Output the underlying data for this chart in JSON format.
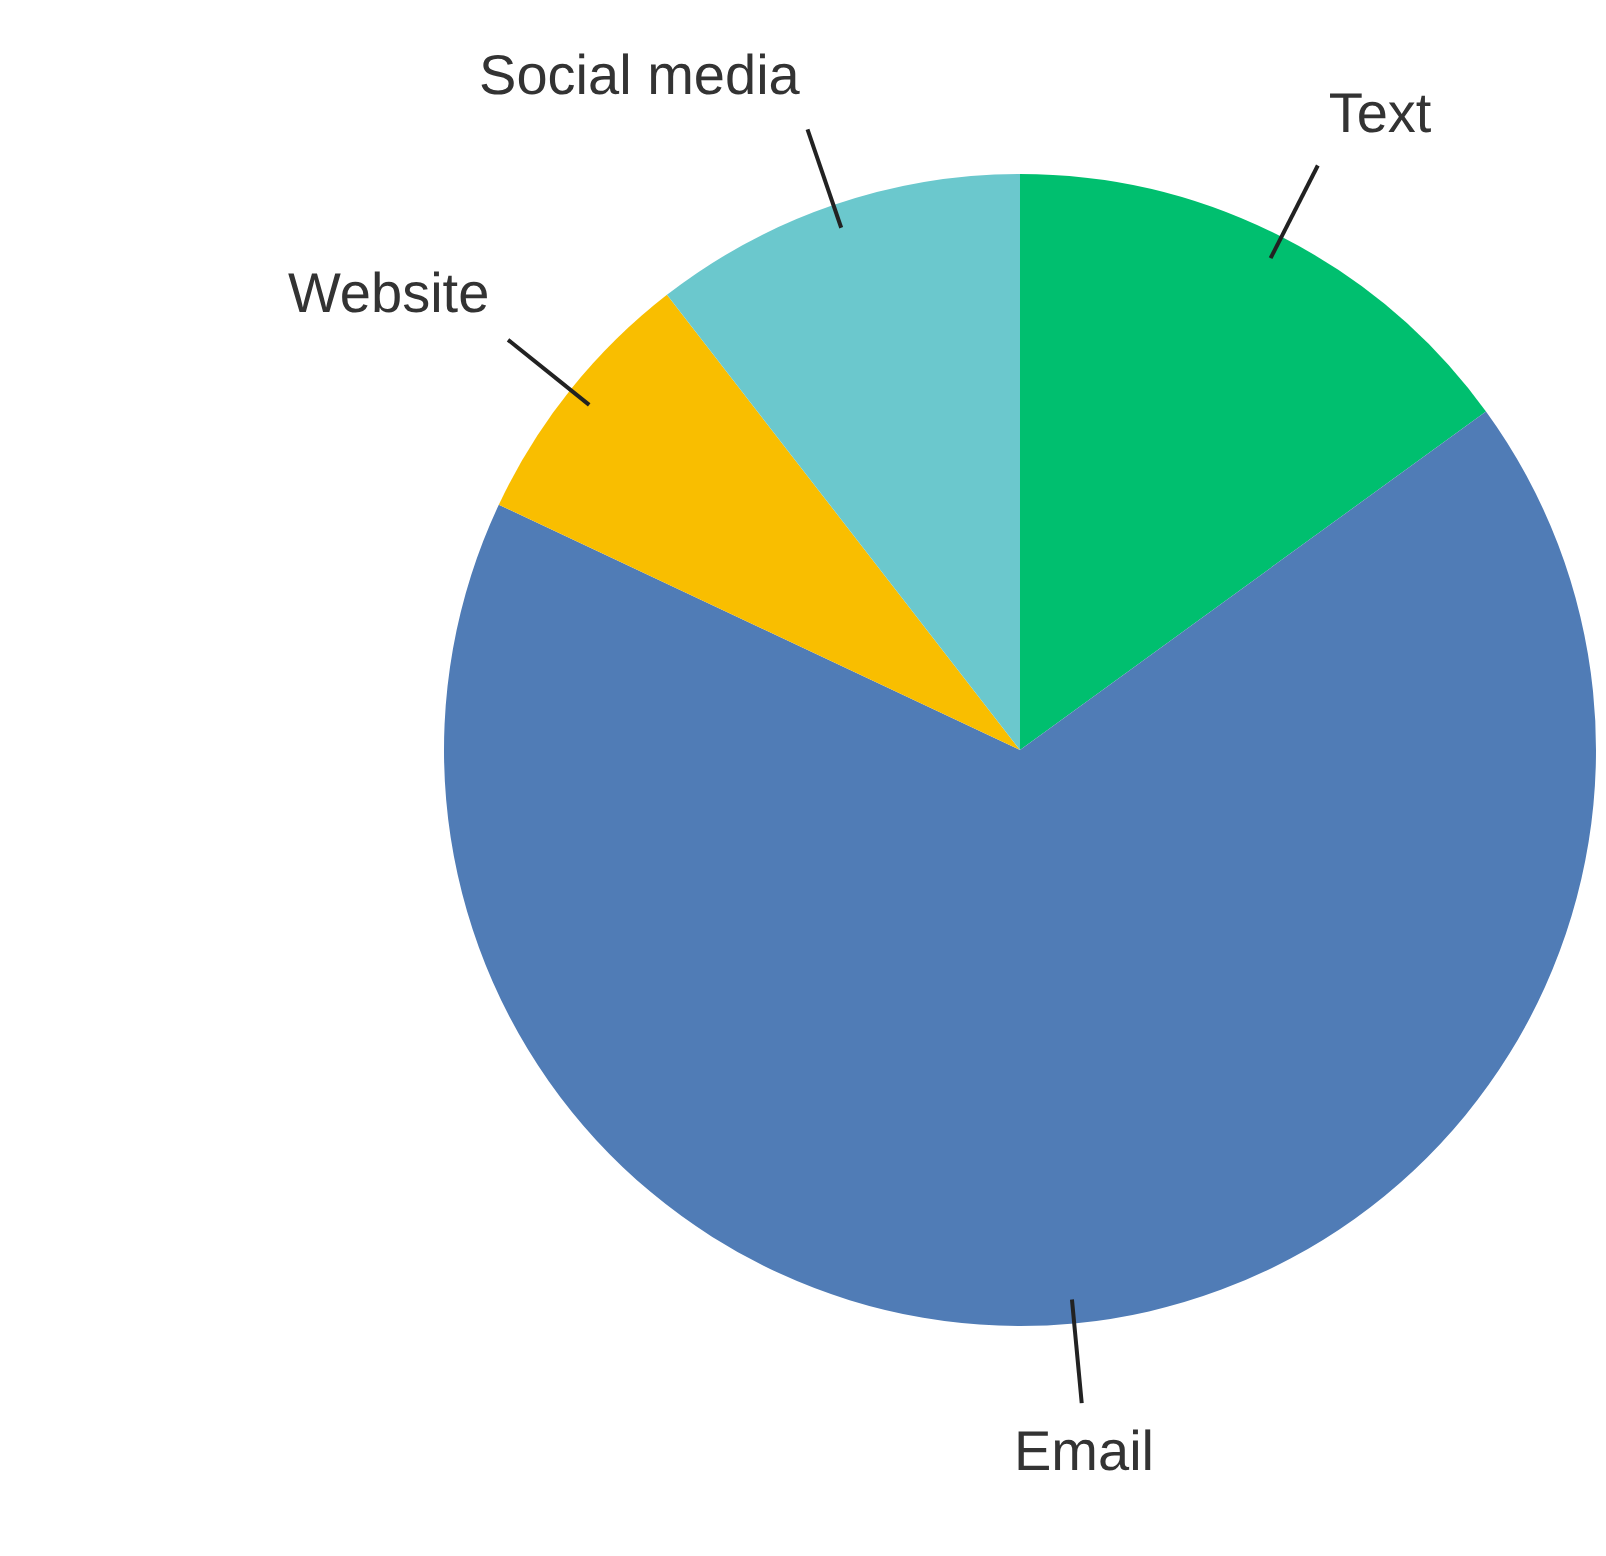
{
  "chart_data": {
    "type": "pie",
    "categories": [
      "Text",
      "Email",
      "Website",
      "Social media"
    ],
    "values": [
      15,
      67,
      7.5,
      10.5
    ],
    "colors": [
      "#00bf6f",
      "#507cb6",
      "#f9be00",
      "#6bc8cd"
    ],
    "legend": false
  }
}
